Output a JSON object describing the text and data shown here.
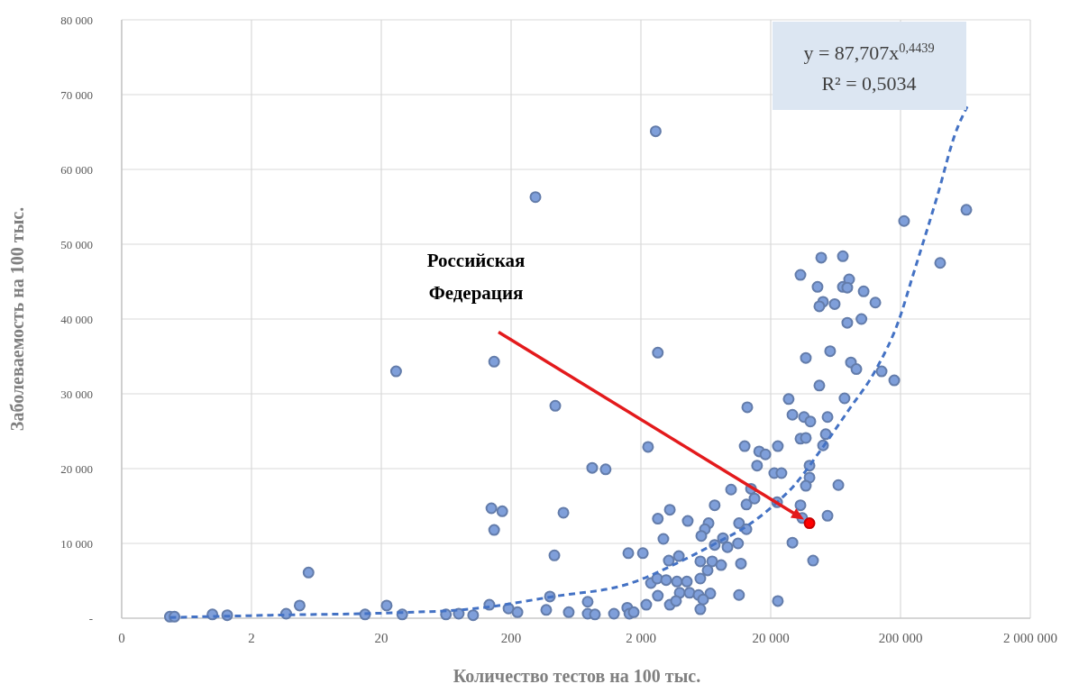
{
  "chart_data": {
    "type": "scatter",
    "xlabel": "Количество тестов на 100 тыс.",
    "ylabel": "Заболеваемость на 100 тыс.",
    "log": "x",
    "xlim": [
      0.2,
      2000000
    ],
    "xticks": [
      {
        "value": 0.2,
        "label": "0"
      },
      2,
      20,
      200,
      {
        "value": 2000,
        "label": "2 000"
      },
      {
        "value": 20000,
        "label": "20 000"
      },
      {
        "value": 200000,
        "label": "200 000"
      },
      {
        "value": 2000000,
        "label": "2 000 000"
      }
    ],
    "ylim": [
      0,
      80000
    ],
    "yticks": [
      {
        "value": 0,
        "label": "-"
      },
      {
        "value": 10000,
        "label": "10 000"
      },
      {
        "value": 20000,
        "label": "20 000"
      },
      {
        "value": 30000,
        "label": "30 000"
      },
      {
        "value": 40000,
        "label": "40 000"
      },
      {
        "value": 50000,
        "label": "50 000"
      },
      {
        "value": 60000,
        "label": "60 000"
      },
      {
        "value": 70000,
        "label": "70 000"
      },
      {
        "value": 80000,
        "label": "80 000"
      }
    ],
    "grid": true,
    "marker": "circle",
    "series": [
      {
        "color": "#7f9fda",
        "x": [
          0.47,
          0.51,
          1.0,
          1.3,
          3.7,
          4.7,
          5.5,
          15,
          22,
          29,
          26,
          63,
          79,
          102,
          136,
          148,
          141,
          171,
          148,
          2600,
          308,
          2700,
          438,
          2270,
          843,
          1070,
          506,
          2700,
          3340,
          2980,
          431,
          1600,
          2070,
          3280,
          3920,
          2390,
          2670,
          3130,
          3790,
          398,
          778,
          2700,
          3980,
          191,
          224,
          373,
          556,
          778,
          885,
          1240,
          1570,
          1630,
          1760,
          2200,
          3340,
          3730,
          13200,
          27500,
          29400,
          12600,
          16300,
          18200,
          22700,
          15700,
          21300,
          24200,
          9900,
          14100,
          15000,
          13000,
          22400,
          7400,
          4590,
          6640,
          6220,
          5840,
          11400,
          13000,
          7400,
          8570,
          9290,
          11200,
          5740,
          7080,
          8300,
          6530,
          11800,
          29400,
          4520,
          5740,
          4740,
          5560,
          6850,
          11400,
          6030,
          5740,
          22700,
          213000,
          49000,
          71900,
          33900,
          45900,
          71900,
          80400,
          77800,
          104000,
          128000,
          50600,
          47400,
          62200,
          77800,
          100000,
          37300,
          57400,
          83000,
          91400,
          143000,
          179000,
          47400,
          74100,
          36100,
          40400,
          54800,
          33900,
          37300,
          53100,
          50600,
          39800,
          39800,
          37300,
          66400,
          33900,
          35000,
          54800,
          42400,
          643000,
          404000
        ],
        "values": [
          200,
          200,
          500,
          400,
          600,
          1700,
          6100,
          500,
          1700,
          500,
          33000,
          500,
          600,
          400,
          1800,
          34300,
          14700,
          14300,
          11800,
          65100,
          56300,
          35500,
          28400,
          22900,
          20100,
          19900,
          14100,
          13300,
          14500,
          10600,
          8400,
          8700,
          8700,
          7700,
          8300,
          4700,
          5300,
          5100,
          4900,
          2900,
          2200,
          3000,
          3400,
          1300,
          800,
          1100,
          800,
          600,
          500,
          600,
          1400,
          600,
          800,
          1800,
          1800,
          2300,
          28200,
          29300,
          27200,
          23000,
          22300,
          21900,
          23000,
          20400,
          19400,
          19400,
          17200,
          17300,
          16000,
          15200,
          15500,
          15100,
          13000,
          12700,
          11900,
          11000,
          12700,
          11900,
          9800,
          10700,
          9500,
          10000,
          7600,
          7600,
          7100,
          6400,
          7300,
          10100,
          4900,
          5300,
          3400,
          3100,
          3300,
          3100,
          2500,
          1200,
          2300,
          53100,
          48200,
          48400,
          45900,
          44300,
          44300,
          45300,
          44200,
          43700,
          42200,
          42300,
          41700,
          42000,
          39500,
          40000,
          34800,
          35700,
          34200,
          33300,
          33000,
          31800,
          31100,
          29400,
          26900,
          26300,
          26900,
          24000,
          24100,
          24600,
          23100,
          20400,
          18800,
          17700,
          17800,
          15100,
          13400,
          13700,
          7700,
          54600,
          47500
        ]
      },
      {
        "type": "line",
        "color": "#4472c4",
        "line_style": "dashed",
        "marker": "none",
        "x": [
          0.47,
          2.8,
          22,
          94,
          424,
          1680,
          3730,
          8300,
          12800,
          22400,
          29800,
          48200,
          81700,
          126000,
          203000,
          238000,
          385000,
          531000,
          653000
        ],
        "values": [
          100,
          400,
          700,
          1200,
          2900,
          4700,
          7300,
          10400,
          12200,
          15500,
          17600,
          22400,
          28100,
          32900,
          40800,
          44700,
          56500,
          64900,
          68400
        ]
      },
      {
        "type": "scatter",
        "color": "#ff0000",
        "x": [
          39800
        ],
        "values": [
          12700
        ]
      }
    ],
    "annotations": [
      "y = 87,707x$^{0,4439}$",
      "R² = 0,5034",
      "Российская Федерация"
    ]
  }
}
